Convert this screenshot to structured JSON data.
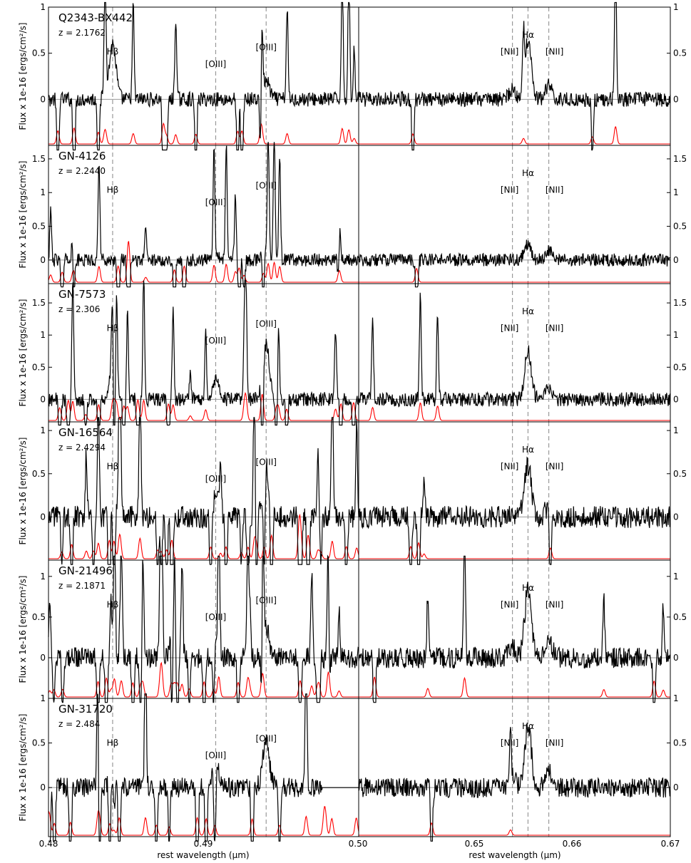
{
  "figure": {
    "xlabel": "rest wavelength (μm)",
    "left_xticks": [
      "0.48",
      "0.49",
      "0.50"
    ],
    "right_xticks": [
      "0.65",
      "0.66",
      "0.67"
    ],
    "ylabel": "Flux x 1e-16 [ergs/cm²/s]",
    "colors": {
      "spectrum": "#000000",
      "sky": "#ff0000",
      "marker": "#999999",
      "zero": "#999999"
    }
  },
  "chart_data": [
    {
      "type": "line",
      "object": "Q2343-BX442",
      "redshift": "z = 2.1762",
      "ylim": [
        -0.5,
        1.0
      ],
      "yticks": [
        "0",
        "0.5",
        "1"
      ],
      "lines": {
        "hbeta": {
          "label": "Hβ",
          "x": 0.4861
        },
        "oiii_a": {
          "label": "[OIII]",
          "x": 0.4959
        },
        "oiii_b": {
          "label": "[OIII]",
          "x": 0.5007
        },
        "nii_a": {
          "label": "[NII]",
          "x": 0.6548
        },
        "halpha": {
          "label": "Hα",
          "x": 0.6563
        },
        "nii_b": {
          "label": "[NII]",
          "x": 0.6583
        }
      },
      "features_left": [
        [
          0.4861,
          0.6
        ],
        [
          0.5007,
          0.2
        ]
      ],
      "features_right": [
        [
          0.6563,
          0.65
        ],
        [
          0.6583,
          0.15
        ],
        [
          0.6548,
          0.1
        ]
      ],
      "noise": 0.05,
      "spikes_left": 18,
      "spikes_right": 4,
      "trunc_left": 0
    },
    {
      "type": "line",
      "object": "GN-4126",
      "redshift": "z = 2.2440",
      "ylim": [
        -0.35,
        1.7
      ],
      "yticks": [
        "0",
        "0.5",
        "1",
        "1.5"
      ],
      "lines": {
        "hbeta": {
          "label": "Hβ",
          "x": 0.4861
        },
        "oiii_a": {
          "label": "[OIII]",
          "x": 0.4959
        },
        "oiii_b": {
          "label": "[OIII]",
          "x": 0.5007
        },
        "nii_a": {
          "label": "[NII]",
          "x": 0.6548
        },
        "halpha": {
          "label": "Hα",
          "x": 0.6563
        },
        "nii_b": {
          "label": "[NII]",
          "x": 0.6583
        }
      },
      "features_left": [
        [
          0.5007,
          0.2
        ],
        [
          0.4959,
          0.1
        ]
      ],
      "features_right": [
        [
          0.6563,
          0.25
        ],
        [
          0.6583,
          0.15
        ]
      ],
      "noise": 0.06,
      "spikes_left": 22,
      "spikes_right": 1,
      "trunc_left": 0
    },
    {
      "type": "line",
      "object": "GN-7573",
      "redshift": "z = 2.306",
      "ylim": [
        -0.35,
        1.8
      ],
      "yticks": [
        "0",
        "0.5",
        "1",
        "1.5"
      ],
      "lines": {
        "hbeta": {
          "label": "Hβ",
          "x": 0.4861
        },
        "oiii_a": {
          "label": "[OIII]",
          "x": 0.4959
        },
        "oiii_b": {
          "label": "[OIII]",
          "x": 0.5007
        },
        "nii_a": {
          "label": "[NII]",
          "x": 0.6548
        },
        "halpha": {
          "label": "Hα",
          "x": 0.6563
        },
        "nii_b": {
          "label": "[NII]",
          "x": 0.6583
        }
      },
      "features_left": [
        [
          0.5007,
          0.85
        ],
        [
          0.4959,
          0.3
        ],
        [
          0.4861,
          0.4
        ]
      ],
      "features_right": [
        [
          0.6563,
          0.75
        ],
        [
          0.6583,
          0.2
        ]
      ],
      "noise": 0.07,
      "spikes_left": 26,
      "spikes_right": 3,
      "trunc_left": 0
    },
    {
      "type": "line",
      "object": "GN-16564",
      "redshift": "z = 2.4294",
      "ylim": [
        -0.5,
        1.1
      ],
      "yticks": [
        "0",
        "0.5",
        "1"
      ],
      "lines": {
        "hbeta": {
          "label": "Hβ",
          "x": 0.4861
        },
        "oiii_a": {
          "label": "[OIII]",
          "x": 0.4959
        },
        "oiii_b": {
          "label": "[OIII]",
          "x": 0.5007
        },
        "nii_a": {
          "label": "[NII]",
          "x": 0.6548
        },
        "halpha": {
          "label": "Hα",
          "x": 0.6563
        },
        "nii_b": {
          "label": "[NII]",
          "x": 0.6583
        }
      },
      "features_left": [
        [
          0.5007,
          0.55
        ],
        [
          0.4959,
          0.2
        ],
        [
          0.4861,
          0.15
        ]
      ],
      "features_right": [
        [
          0.6563,
          0.6
        ],
        [
          0.6583,
          0.1
        ]
      ],
      "noise": 0.08,
      "spikes_left": 34,
      "spikes_right": 4,
      "trunc_left": 0
    },
    {
      "type": "line",
      "object": "GN-21496",
      "redshift": "z = 2.1871",
      "ylim": [
        -0.5,
        1.2
      ],
      "yticks": [
        "0",
        "0.5",
        "1"
      ],
      "lines": {
        "hbeta": {
          "label": "Hβ",
          "x": 0.4861
        },
        "oiii_a": {
          "label": "[OIII]",
          "x": 0.4959
        },
        "oiii_b": {
          "label": "[OIII]",
          "x": 0.5007
        },
        "nii_a": {
          "label": "[NII]",
          "x": 0.6548
        },
        "halpha": {
          "label": "Hα",
          "x": 0.6563
        },
        "nii_b": {
          "label": "[NII]",
          "x": 0.6583
        }
      },
      "features_left": [
        [
          0.5007,
          0.35
        ],
        [
          0.4959,
          0.15
        ]
      ],
      "features_right": [
        [
          0.6563,
          0.85
        ],
        [
          0.6583,
          0.2
        ],
        [
          0.6548,
          0.15
        ]
      ],
      "noise": 0.08,
      "spikes_left": 36,
      "spikes_right": 6,
      "trunc_left": 0
    },
    {
      "type": "line",
      "object": "GN-31720",
      "redshift": "z = 2.484",
      "ylim": [
        -0.55,
        1.0
      ],
      "yticks": [
        "0",
        "0.5",
        "1"
      ],
      "lines": {
        "hbeta": {
          "label": "Hβ",
          "x": 0.4861
        },
        "oiii_a": {
          "label": "[OIII]",
          "x": 0.4959
        },
        "oiii_b": {
          "label": "[OIII]",
          "x": 0.5007
        },
        "nii_a": {
          "label": "[NII]",
          "x": 0.6548
        },
        "halpha": {
          "label": "Hα",
          "x": 0.6563
        },
        "nii_b": {
          "label": "[NII]",
          "x": 0.6583
        }
      },
      "features_left": [
        [
          0.5007,
          0.5
        ],
        [
          0.4959,
          0.25
        ],
        [
          0.4861,
          0.2
        ]
      ],
      "features_right": [
        [
          0.6563,
          0.7
        ],
        [
          0.6583,
          0.2
        ],
        [
          0.6548,
          0.1
        ]
      ],
      "noise": 0.07,
      "spikes_left": 22,
      "spikes_right": 2,
      "trunc_left": 0.506
    }
  ]
}
